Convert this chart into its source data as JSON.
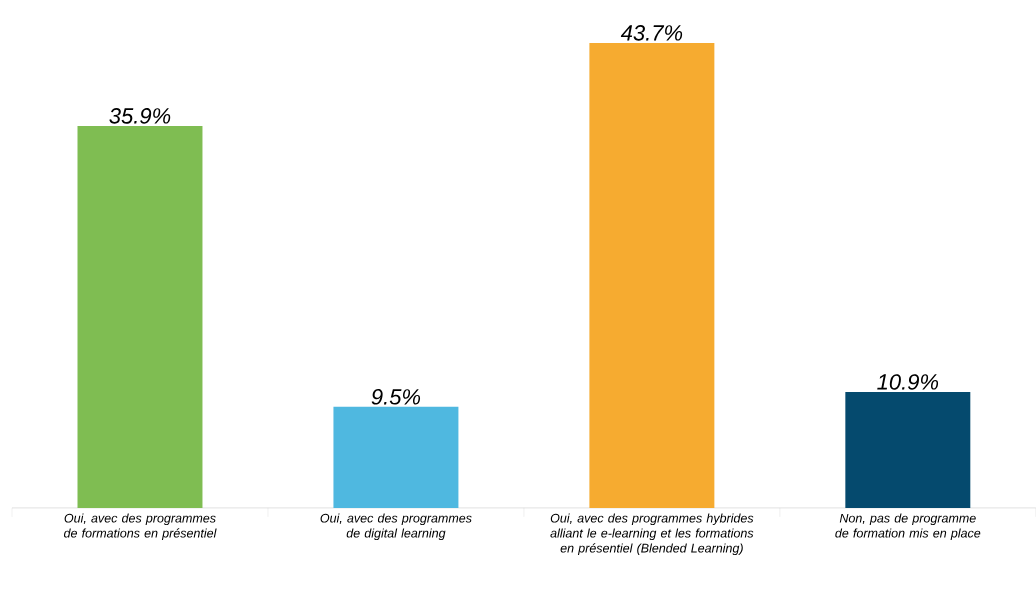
{
  "chart_data": {
    "type": "bar",
    "categories": [
      "Oui, avec des programmes de formations en présentiel",
      "Oui, avec des programmes de digital learning",
      "Oui, avec des programmes hybrides alliant le e-learning et les formations en présentiel (Blended Learning)",
      "Non, pas de programme de formation mis en place"
    ],
    "values": [
      35.9,
      9.5,
      43.7,
      10.9
    ],
    "colors": [
      "#7fbd52",
      "#4fb8e0",
      "#f6ab30",
      "#054a6e"
    ],
    "value_labels": [
      "35.9%",
      "9.5%",
      "43.7%",
      "10.9%"
    ],
    "tick_labels": "x"
  }
}
